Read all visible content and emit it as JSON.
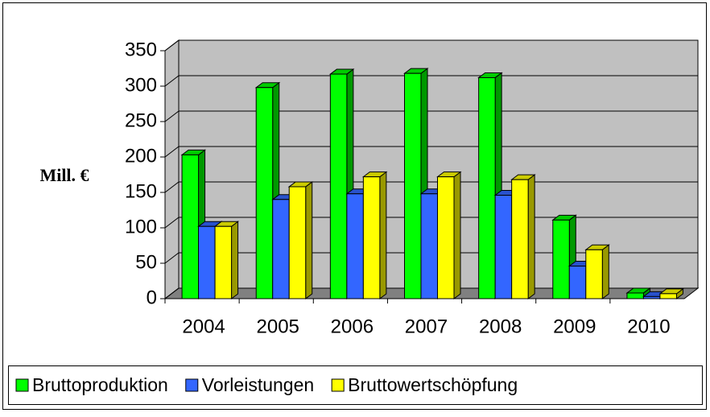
{
  "chart_data": {
    "type": "bar3d",
    "y_label": "Mill. €",
    "categories": [
      "2004",
      "2005",
      "2006",
      "2007",
      "2008",
      "2009",
      "2010"
    ],
    "series": [
      {
        "name": "Bruttoproduktion",
        "color": "#00ff00",
        "values": [
          203,
          298,
          317,
          318,
          312,
          111,
          8
        ]
      },
      {
        "name": "Vorleistungen",
        "color": "#3366ff",
        "values": [
          102,
          140,
          148,
          148,
          146,
          46,
          3
        ]
      },
      {
        "name": "Bruttowertschöpfung",
        "color": "#ffff00",
        "values": [
          102,
          158,
          172,
          172,
          168,
          69,
          7
        ]
      }
    ],
    "ylim": [
      0,
      350
    ],
    "yticks": [
      0,
      50,
      100,
      150,
      200,
      250,
      300,
      350
    ],
    "grid": true,
    "legend": "bottom"
  }
}
